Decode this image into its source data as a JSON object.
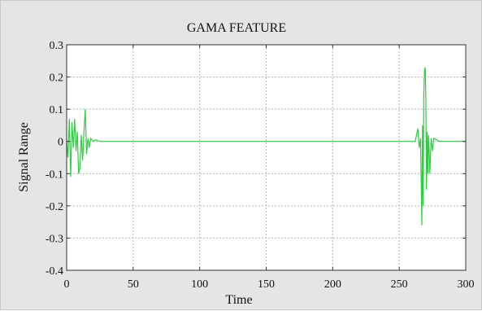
{
  "chart_data": {
    "type": "line",
    "title": "GAMA FEATURE",
    "xlabel": "Time",
    "ylabel": "Signal Range",
    "xlim": [
      0,
      300
    ],
    "ylim": [
      -0.4,
      0.3
    ],
    "xticks": [
      0,
      50,
      100,
      150,
      200,
      250,
      300
    ],
    "yticks": [
      0.3,
      0.2,
      0.1,
      0,
      -0.1,
      -0.2,
      -0.3,
      -0.4
    ],
    "grid": true,
    "series": [
      {
        "color": "#2ecc40",
        "x": [
          0,
          1,
          2,
          3,
          4,
          5,
          6,
          7,
          8,
          9,
          10,
          11,
          12,
          13,
          14,
          15,
          16,
          17,
          18,
          20,
          22,
          25,
          30,
          50,
          100,
          150,
          200,
          250,
          262,
          264,
          265,
          266,
          267,
          267.5,
          268,
          268.5,
          269,
          269.5,
          270,
          270.5,
          271,
          271.5,
          272,
          272.5,
          273,
          274,
          275,
          276,
          278,
          280,
          290,
          300
        ],
        "y": [
          0,
          -0.05,
          0.07,
          -0.11,
          0.06,
          -0.02,
          0.07,
          -0.03,
          0.03,
          -0.1,
          -0.08,
          0.02,
          -0.06,
          0.03,
          0.1,
          -0.04,
          0.01,
          -0.02,
          0.01,
          0,
          0.005,
          0,
          0,
          0,
          0,
          0,
          0,
          0,
          0,
          0.04,
          -0.02,
          0.01,
          -0.26,
          0.05,
          -0.2,
          0.15,
          0.22,
          0.23,
          0.14,
          -0.15,
          0.03,
          -0.1,
          0.02,
          -0.03,
          -0.1,
          0.01,
          -0.03,
          0.01,
          0.005,
          0,
          0,
          0
        ]
      }
    ]
  }
}
